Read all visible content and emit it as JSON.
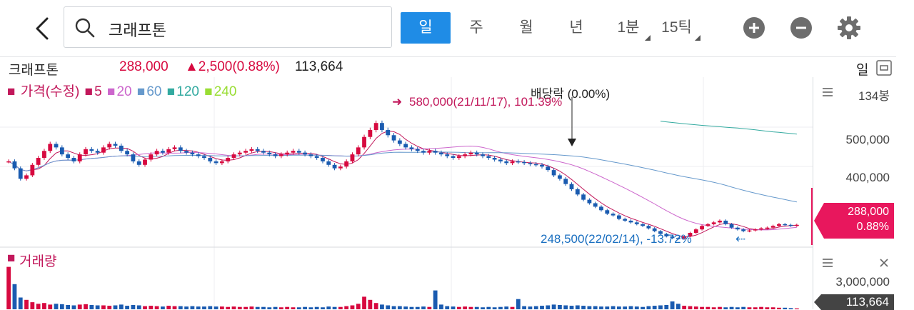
{
  "header": {
    "back_icon": "chevron-left-icon",
    "search_icon": "search-icon",
    "search_value": "크래프톤",
    "periods": [
      "일",
      "주",
      "월",
      "년"
    ],
    "active_period": "일",
    "interval": "1분",
    "tick": "15틱",
    "zoom_in_icon": "plus-circle-icon",
    "zoom_out_icon": "minus-circle-icon",
    "settings_icon": "gear-icon"
  },
  "info": {
    "name": "크래프톤",
    "price": "288,000",
    "change": "▲2,500(0.88%)",
    "volume": "113,664",
    "period_label": "일",
    "up_color": "#d7093f",
    "down_color": "#1a5bb0"
  },
  "legend": {
    "label": "가격(수정)",
    "mas": [
      {
        "value": "5",
        "color": "#c2185b"
      },
      {
        "value": "20",
        "color": "#cc66cc"
      },
      {
        "value": "60",
        "color": "#6699cc"
      },
      {
        "value": "120",
        "color": "#33aaa0"
      },
      {
        "value": "240",
        "color": "#99dd33"
      }
    ]
  },
  "annotations": {
    "dividend": "배당락 (0.00%)",
    "high": "580,000(21/11/17), 101.39%",
    "low": "248,500(22/02/14), -13.72%"
  },
  "axis": {
    "count": "134봉",
    "ticks": [
      "500,000",
      "400,000"
    ],
    "current_price": "288,000",
    "current_pct": "0.88%",
    "volume_tick": "3,000,000",
    "volume_current": "113,664",
    "menu_icon": "menu-icon",
    "close_icon": "close-icon"
  },
  "volume": {
    "label": "거래량"
  },
  "chart_data": {
    "type": "candlestick",
    "ylim": [
      220000,
      650000
    ],
    "closes": [
      470000,
      450000,
      420000,
      430000,
      460000,
      480000,
      500000,
      520000,
      510000,
      490000,
      480000,
      470000,
      490000,
      505000,
      500000,
      495000,
      510000,
      520000,
      515000,
      500000,
      490000,
      470000,
      460000,
      475000,
      490000,
      500000,
      495000,
      505000,
      510000,
      500000,
      495000,
      490000,
      485000,
      480000,
      470000,
      465000,
      470000,
      480000,
      490000,
      495000,
      500000,
      505000,
      500000,
      495000,
      490000,
      485000,
      490000,
      495000,
      500000,
      495000,
      490000,
      485000,
      480000,
      470000,
      460000,
      450000,
      455000,
      470000,
      490000,
      510000,
      540000,
      560000,
      580000,
      560000,
      545000,
      530000,
      520000,
      510000,
      505000,
      500000,
      495000,
      500000,
      495000,
      490000,
      485000,
      480000,
      485000,
      490000,
      495000,
      490000,
      485000,
      480000,
      475000,
      470000,
      465000,
      470000,
      468000,
      465000,
      462000,
      460000,
      455000,
      445000,
      430000,
      420000,
      405000,
      390000,
      375000,
      360000,
      350000,
      340000,
      330000,
      320000,
      315000,
      305000,
      300000,
      295000,
      290000,
      285000,
      278000,
      270000,
      262000,
      255000,
      250000,
      248500,
      255000,
      265000,
      275000,
      285000,
      290000,
      295000,
      300000,
      290000,
      280000,
      275000,
      270000,
      272000,
      275000,
      278000,
      280000,
      285000,
      290000,
      288000,
      285500,
      288000
    ],
    "ma_labels": [
      "5",
      "20",
      "60",
      "120",
      "240"
    ],
    "volume_ylim": [
      0,
      3000000
    ],
    "volume_values": [
      6000000,
      3200000,
      1500000,
      1200000,
      900000,
      700000,
      800000,
      600000,
      700000,
      650000,
      550000,
      500000,
      600000,
      650000,
      550000,
      500000,
      500000,
      450000,
      500000,
      600000,
      450000,
      550000,
      500000,
      400000,
      450000,
      400000,
      350000,
      450000,
      400000,
      400000,
      350000,
      400000,
      350000,
      350000,
      400000,
      350000,
      350000,
      300000,
      350000,
      300000,
      300000,
      350000,
      300000,
      300000,
      250000,
      300000,
      250000,
      300000,
      250000,
      250000,
      300000,
      250000,
      300000,
      250000,
      350000,
      300000,
      300000,
      400000,
      500000,
      700000,
      1600000,
      1200000,
      800000,
      600000,
      500000,
      400000,
      400000,
      350000,
      300000,
      300000,
      350000,
      300000,
      2400000,
      600000,
      400000,
      350000,
      300000,
      350000,
      300000,
      300000,
      250000,
      300000,
      250000,
      300000,
      350000,
      300000,
      1300000,
      400000,
      350000,
      400000,
      450000,
      500000,
      600000,
      550000,
      500000,
      450000,
      500000,
      450000,
      400000,
      400000,
      350000,
      350000,
      400000,
      350000,
      350000,
      400000,
      350000,
      300000,
      400000,
      450000,
      500000,
      550000,
      1000000,
      700000,
      450000,
      400000,
      350000,
      300000,
      300000,
      250000,
      300000,
      250000,
      300000,
      250000,
      300000,
      250000,
      250000,
      300000,
      250000,
      250000,
      200000,
      200000,
      150000,
      113664
    ]
  }
}
